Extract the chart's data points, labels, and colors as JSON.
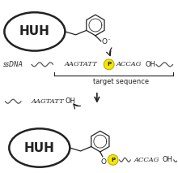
{
  "bg_color": "#ffffff",
  "huh_text": "HUH",
  "p_color": "#f5e800",
  "p_color_stroke": "#b8a000",
  "sequence_left": "AAGTATT",
  "sequence_right": "ACCAG",
  "oh_text": "OH",
  "ssdna_text": "ssDNA",
  "target_text": "target sequence",
  "p_label": "P",
  "dark": "#222222",
  "gray": "#555555"
}
